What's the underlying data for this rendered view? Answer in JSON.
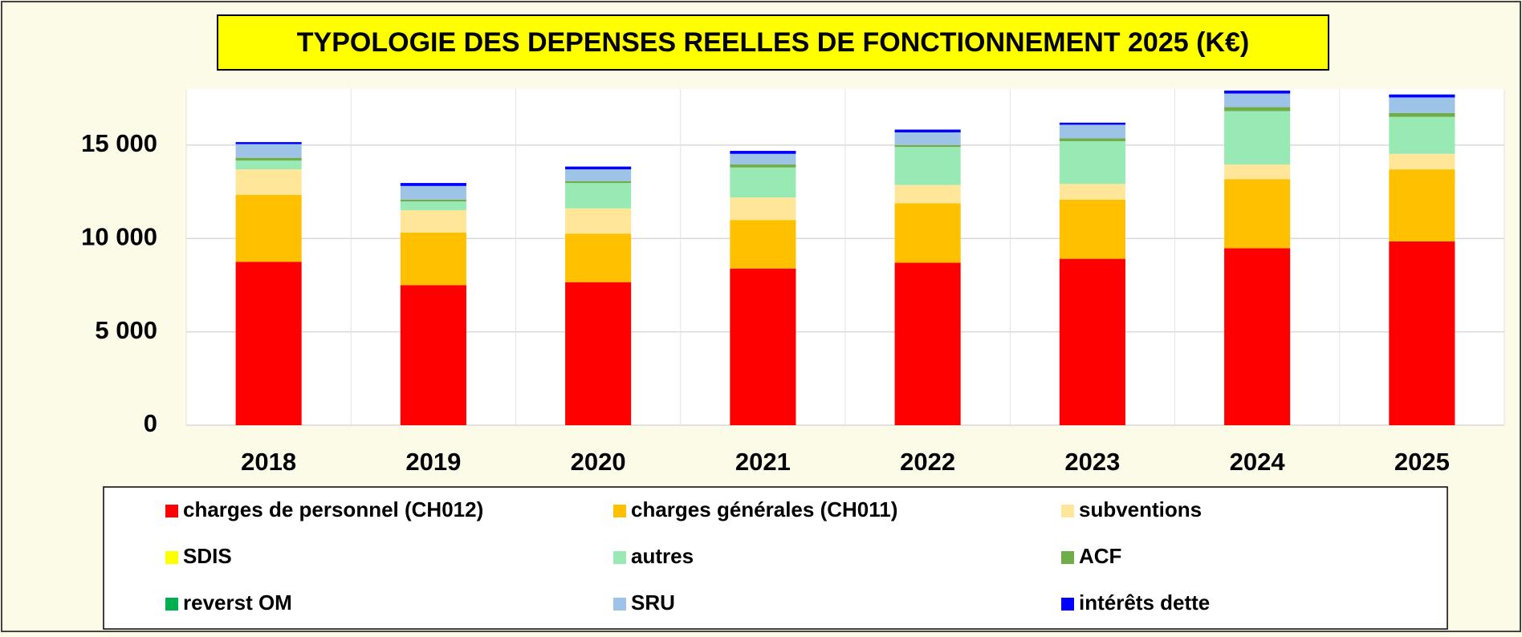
{
  "chart_data": {
    "type": "stacked_bar",
    "title": "TYPOLOGIE  DES DEPENSES REELLES DE FONCTIONNEMENT 2025 (K€)",
    "categories": [
      "2018",
      "2019",
      "2020",
      "2021",
      "2022",
      "2023",
      "2024",
      "2025"
    ],
    "series": [
      {
        "name": "charges de personnel (CH012)",
        "color": "#ff0000",
        "values": [
          8750,
          7500,
          7660,
          8390,
          8700,
          8910,
          9480,
          9840
        ]
      },
      {
        "name": "charges générales (CH011)",
        "color": "#ffc000",
        "values": [
          3590,
          2810,
          2600,
          2600,
          3180,
          3170,
          3700,
          3860
        ]
      },
      {
        "name": "subventions",
        "color": "#ffe699",
        "values": [
          1360,
          1200,
          1350,
          1200,
          980,
          840,
          780,
          830
        ]
      },
      {
        "name": "SDIS",
        "color": "#ffff00",
        "values": [
          0,
          0,
          0,
          0,
          0,
          0,
          0,
          0
        ]
      },
      {
        "name": "autres",
        "color": "#99e9b4",
        "values": [
          470,
          470,
          1360,
          1610,
          2040,
          2290,
          2860,
          1980
        ]
      },
      {
        "name": "ACF",
        "color": "#70ad47",
        "values": [
          150,
          100,
          100,
          160,
          100,
          150,
          210,
          210
        ]
      },
      {
        "name": "reverst OM",
        "color": "#00b050",
        "values": [
          0,
          0,
          0,
          0,
          0,
          0,
          0,
          0
        ]
      },
      {
        "name": "SRU",
        "color": "#9dc3e6",
        "values": [
          730,
          730,
          630,
          570,
          680,
          730,
          730,
          830
        ]
      },
      {
        "name": "intérêts dette",
        "color": "#0000ff",
        "values": [
          110,
          160,
          150,
          160,
          150,
          110,
          160,
          160
        ]
      }
    ],
    "ylim": [
      0,
      18000
    ],
    "yticks": [
      0,
      {
        "value": 5000,
        "label": "5 000"
      },
      {
        "value": 10000,
        "label": "10 000"
      },
      {
        "value": 15000,
        "label": "15 000"
      }
    ],
    "grid": true
  }
}
